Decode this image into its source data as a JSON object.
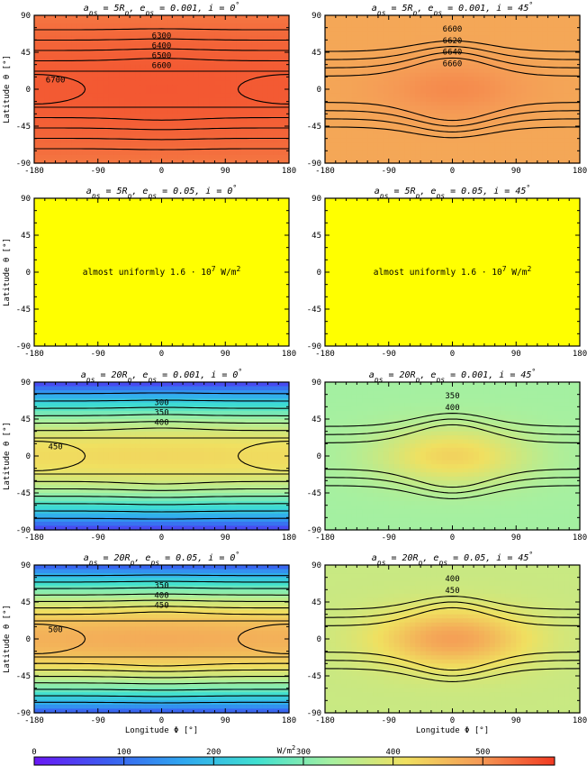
{
  "chart_data": [
    {
      "type": "heatmap",
      "title": {
        "a": "5R",
        "e": "0.001",
        "i": "0"
      },
      "xlim": [
        -180,
        180
      ],
      "ylim": [
        -90,
        90
      ],
      "xticks": [
        "-180",
        "-90",
        "0",
        "90",
        "180"
      ],
      "yticks": [
        "90",
        "45",
        "0",
        "-45",
        "-90"
      ],
      "xlabel": "",
      "ylabel": "Latitude θ [°]",
      "pattern": "belt",
      "mean": 6550,
      "pole_value": 6250,
      "equator_amp": 0.9,
      "contour_labels": [
        "6300",
        "6400",
        "6500",
        "6600",
        "6700"
      ],
      "contour_count": 10
    },
    {
      "type": "heatmap",
      "title": {
        "a": "5R",
        "e": "0.001",
        "i": "45"
      },
      "xlim": [
        -180,
        180
      ],
      "ylim": [
        -90,
        90
      ],
      "xticks": [
        "-180",
        "-90",
        "0",
        "90",
        "180"
      ],
      "yticks": [
        "90",
        "45",
        "0",
        "-45",
        "-90"
      ],
      "xlabel": "",
      "ylabel": "",
      "pattern": "lens",
      "mean": 6630,
      "edge_value": 6590,
      "peak_value": 6690,
      "contour_labels": [
        "6600",
        "6620",
        "6640",
        "6660"
      ],
      "contour_count": 8
    },
    {
      "type": "heatmap",
      "title": {
        "a": "5R",
        "e": "0.05",
        "i": "0"
      },
      "xlim": [
        -180,
        180
      ],
      "ylim": [
        -90,
        90
      ],
      "xticks": [
        "-180",
        "-90",
        "0",
        "90",
        "180"
      ],
      "yticks": [
        "90",
        "45",
        "0",
        "-45",
        "-90"
      ],
      "xlabel": "",
      "ylabel": "Latitude θ [°]",
      "pattern": "uniform",
      "annotation": {
        "text": "almost uniformly 1.6 · 10",
        "exp": "7",
        "unit": "W/m",
        "unit_exp": "2"
      }
    },
    {
      "type": "heatmap",
      "title": {
        "a": "5R",
        "e": "0.05",
        "i": "45"
      },
      "xlim": [
        -180,
        180
      ],
      "ylim": [
        -90,
        90
      ],
      "xticks": [
        "-180",
        "-90",
        "0",
        "90",
        "180"
      ],
      "yticks": [
        "90",
        "45",
        "0",
        "-45",
        "-90"
      ],
      "xlabel": "",
      "ylabel": "",
      "pattern": "uniform",
      "annotation": {
        "text": "almost uniformly 1.6 · 10",
        "exp": "7",
        "unit": "W/m",
        "unit_exp": "2"
      }
    },
    {
      "type": "heatmap",
      "title": {
        "a": "20R",
        "e": "0.001",
        "i": "0"
      },
      "xlim": [
        -180,
        180
      ],
      "ylim": [
        -90,
        90
      ],
      "xticks": [
        "-180",
        "-90",
        "0",
        "90",
        "180"
      ],
      "yticks": [
        "90",
        "45",
        "0",
        "-45",
        "-90"
      ],
      "xlabel": "",
      "ylabel": "Latitude θ [°]",
      "pattern": "belt",
      "mean": 420,
      "pole_value": 30,
      "equator_amp": 0.12,
      "contour_labels": [
        "300",
        "350",
        "400",
        "450"
      ],
      "contour_count": 14
    },
    {
      "type": "heatmap",
      "title": {
        "a": "20R",
        "e": "0.001",
        "i": "45"
      },
      "xlim": [
        -180,
        180
      ],
      "ylim": [
        -90,
        90
      ],
      "xticks": [
        "-180",
        "-90",
        "0",
        "90",
        "180"
      ],
      "yticks": [
        "90",
        "45",
        "0",
        "-45",
        "-90"
      ],
      "xlabel": "",
      "ylabel": "",
      "pattern": "lens",
      "mean": 370,
      "edge_value": 330,
      "peak_value": 430,
      "contour_labels": [
        "350",
        "400"
      ],
      "contour_count": 6
    },
    {
      "type": "heatmap",
      "title": {
        "a": "20R",
        "e": "0.05",
        "i": "0"
      },
      "xlim": [
        -180,
        180
      ],
      "ylim": [
        -90,
        90
      ],
      "xticks": [
        "-180",
        "-90",
        "0",
        "90",
        "180"
      ],
      "yticks": [
        "90",
        "45",
        "0",
        "-45",
        "-90"
      ],
      "xlabel": "Longitude Φ [°]",
      "ylabel": "Latitude θ [°]",
      "pattern": "belt",
      "mean": 470,
      "pole_value": 60,
      "equator_amp": 0.14,
      "contour_labels": [
        "350",
        "400",
        "450",
        "500"
      ],
      "contour_count": 16
    },
    {
      "type": "heatmap",
      "title": {
        "a": "20R",
        "e": "0.05",
        "i": "45"
      },
      "xlim": [
        -180,
        180
      ],
      "ylim": [
        -90,
        90
      ],
      "xticks": [
        "-180",
        "-90",
        "0",
        "90",
        "180"
      ],
      "yticks": [
        "90",
        "45",
        "0",
        "-45",
        "-90"
      ],
      "xlabel": "Longitude Φ [°]",
      "ylabel": "",
      "pattern": "lens",
      "mean": 420,
      "edge_value": 370,
      "peak_value": 490,
      "contour_labels": [
        "400",
        "450"
      ],
      "contour_count": 6
    }
  ],
  "colorbar": {
    "min": 0,
    "max": 580,
    "ticks": [
      "0",
      "100",
      "200",
      "300",
      "400",
      "500"
    ],
    "label": "W/m",
    "label_exp": "2"
  },
  "colors": {
    "stops": [
      "#6a17f5",
      "#3b5ef0",
      "#2fa7f0",
      "#40e0d0",
      "#a6f0a0",
      "#f0e060",
      "#f59a55",
      "#f23a22"
    ],
    "uniform": "#ffff00",
    "lens_5R_bg": "#db6218"
  }
}
